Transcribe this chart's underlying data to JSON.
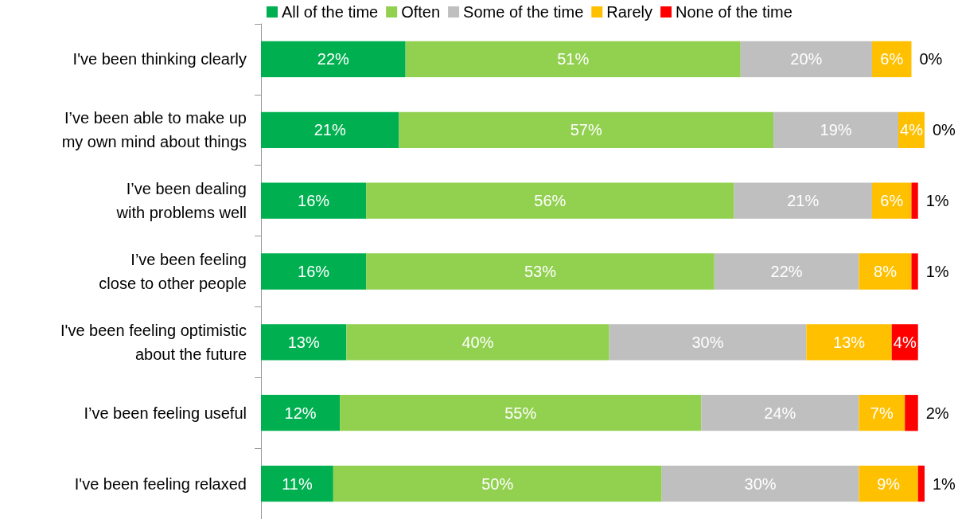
{
  "chart_data": {
    "type": "bar",
    "orientation": "horizontal",
    "stacked": true,
    "legend": "top",
    "categories": [
      "I've been thinking clearly",
      "I’ve been able to make up\nmy own mind about things",
      "I’ve been dealing\nwith problems well",
      "I’ve been feeling\nclose to other people",
      "I've been feeling optimistic\nabout the future",
      "I’ve been feeling useful",
      "I've been feeling relaxed"
    ],
    "series": [
      {
        "name": "All of the time",
        "color": "#00b050",
        "values": [
          22,
          21,
          16,
          16,
          13,
          12,
          11
        ],
        "value_labels": [
          "22%",
          "21%",
          "16%",
          "16%",
          "13%",
          "12%",
          "11%"
        ]
      },
      {
        "name": "Often",
        "color": "#92d050",
        "values": [
          51,
          57,
          56,
          53,
          40,
          55,
          50
        ],
        "value_labels": [
          "51%",
          "57%",
          "56%",
          "53%",
          "40%",
          "55%",
          "50%"
        ]
      },
      {
        "name": "Some of the time",
        "color": "#bfbfbf",
        "values": [
          20,
          19,
          21,
          22,
          30,
          24,
          30
        ],
        "value_labels": [
          "20%",
          "19%",
          "21%",
          "22%",
          "30%",
          "24%",
          "30%"
        ]
      },
      {
        "name": "Rarely",
        "color": "#ffc000",
        "values": [
          6,
          4,
          6,
          8,
          13,
          7,
          9
        ],
        "value_labels": [
          "6%",
          "4%",
          "6%",
          "8%",
          "13%",
          "7%",
          "9%"
        ]
      },
      {
        "name": "None of the time",
        "color": "#ff0000",
        "values": [
          0,
          0,
          1,
          1,
          4,
          2,
          1
        ],
        "value_labels": [
          "0%",
          "0%",
          "1%",
          "1%",
          "4%",
          "2%",
          "1%"
        ]
      }
    ]
  }
}
